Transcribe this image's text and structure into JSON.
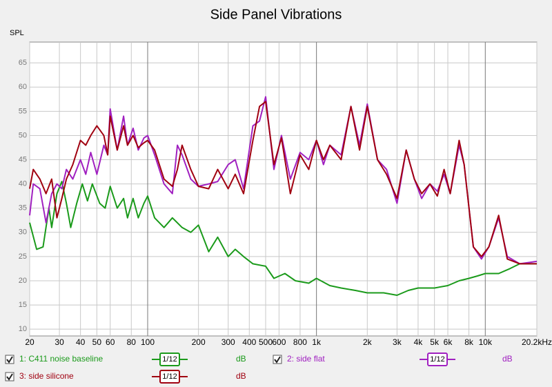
{
  "chart_data": {
    "type": "line",
    "title": "Side Panel Vibrations",
    "ylabel": "SPL",
    "xscale": "log",
    "grid": true,
    "xlim": [
      20,
      20200
    ],
    "ylim": [
      8.6,
      69.3
    ],
    "yticks": [
      10,
      15,
      20,
      25,
      30,
      35,
      40,
      45,
      50,
      55,
      60,
      65
    ],
    "xticks": [
      20,
      30,
      40,
      50,
      60,
      80,
      100,
      200,
      300,
      400,
      500,
      600,
      800,
      {
        "value": 1000,
        "label": "1k"
      },
      {
        "value": 2000,
        "label": "2k"
      },
      {
        "value": 3000,
        "label": "3k"
      },
      {
        "value": 4000,
        "label": "4k"
      },
      {
        "value": 5000,
        "label": "5k"
      },
      {
        "value": 6000,
        "label": "6k"
      },
      {
        "value": 8000,
        "label": "8k"
      },
      {
        "value": 10000,
        "label": "10k"
      },
      {
        "value": 20200,
        "label": "20.2kHz"
      }
    ],
    "series": [
      {
        "name": "1: C411 noise baseline",
        "color": "#1a9a1a",
        "smoothing": "1/12",
        "unit": "dB",
        "x": [
          20,
          22,
          24,
          26,
          27,
          29,
          31,
          33,
          35,
          38,
          41,
          44,
          47,
          52,
          56,
          60,
          66,
          72,
          76,
          82,
          88,
          95,
          100,
          110,
          125,
          140,
          160,
          180,
          200,
          230,
          260,
          300,
          330,
          370,
          420,
          500,
          560,
          650,
          750,
          900,
          1000,
          1200,
          1400,
          1700,
          2000,
          2500,
          3000,
          3500,
          4000,
          5000,
          6000,
          7000,
          8000,
          9000,
          10000,
          12000,
          14000,
          16000,
          20200
        ],
        "values": [
          32,
          26.5,
          27,
          35,
          31,
          38,
          40.5,
          36,
          31,
          36,
          40,
          36.5,
          40,
          36,
          35,
          39.5,
          35,
          37,
          33,
          37,
          33,
          36,
          37.5,
          33,
          31,
          33,
          31,
          30,
          31.5,
          26,
          29,
          25,
          26.5,
          25,
          23.5,
          23,
          20.5,
          21.5,
          20,
          19.5,
          20.5,
          19,
          18.5,
          18,
          17.5,
          17.5,
          17,
          18,
          18.5,
          18.5,
          19,
          20,
          20.5,
          21,
          21.5,
          21.5,
          22.5,
          23.5,
          23.5
        ]
      },
      {
        "name": "2: side flat",
        "color": "#a020c0",
        "smoothing": "1/12",
        "unit": "dB",
        "x": [
          20,
          21,
          23,
          25,
          27,
          29,
          31,
          33,
          36,
          40,
          43,
          46,
          50,
          55,
          58,
          60,
          66,
          72,
          76,
          82,
          88,
          95,
          100,
          110,
          125,
          140,
          150,
          160,
          180,
          200,
          230,
          260,
          300,
          330,
          370,
          420,
          460,
          500,
          560,
          620,
          700,
          800,
          900,
          1000,
          1100,
          1200,
          1400,
          1600,
          1800,
          2000,
          2300,
          2600,
          3000,
          3400,
          3800,
          4200,
          4700,
          5200,
          5700,
          6200,
          7000,
          7500,
          8500,
          9500,
          10500,
          12000,
          13500,
          16000,
          20200
        ],
        "values": [
          33.5,
          40,
          39,
          32,
          38,
          40,
          39,
          43,
          41,
          45,
          42,
          46.5,
          42,
          48,
          46,
          55.5,
          47,
          54,
          48,
          51.5,
          47,
          49.5,
          50,
          46,
          40,
          38,
          48,
          46,
          41,
          39.5,
          40,
          40.5,
          44,
          45,
          39,
          52,
          53,
          58,
          43,
          50,
          41,
          46.5,
          45,
          49,
          44,
          48,
          46,
          56,
          48,
          56.5,
          45,
          43,
          36,
          47,
          41,
          37,
          40,
          38.5,
          42,
          38,
          48,
          44,
          27,
          24.5,
          27,
          33,
          25,
          23.5,
          24
        ]
      },
      {
        "name": "3: side silicone",
        "color": "#a00010",
        "smoothing": "1/12",
        "unit": "dB",
        "x": [
          20,
          21,
          23,
          25,
          27,
          29,
          31,
          33,
          36,
          40,
          43,
          46,
          50,
          55,
          58,
          60,
          66,
          72,
          76,
          82,
          88,
          95,
          100,
          110,
          125,
          140,
          150,
          160,
          180,
          200,
          230,
          260,
          300,
          330,
          370,
          420,
          460,
          500,
          560,
          620,
          700,
          800,
          900,
          1000,
          1100,
          1200,
          1400,
          1600,
          1800,
          2000,
          2300,
          2600,
          3000,
          3400,
          3800,
          4200,
          4700,
          5200,
          5700,
          6200,
          7000,
          7500,
          8500,
          9500,
          10500,
          12000,
          13500,
          16000,
          20200
        ],
        "values": [
          39,
          43,
          41,
          38,
          41,
          33,
          37,
          41,
          44,
          49,
          48,
          50,
          52,
          50,
          46,
          54,
          47,
          52,
          48,
          50,
          47.5,
          48.5,
          49,
          47,
          41,
          39.5,
          43,
          48,
          43,
          39.5,
          39,
          43,
          39,
          42,
          38,
          49,
          56,
          57,
          44,
          49.5,
          38,
          46,
          43,
          49,
          45,
          48,
          45,
          56,
          47,
          56,
          45,
          42,
          37,
          47,
          41,
          38,
          40,
          37.5,
          43,
          38,
          49,
          44,
          27,
          25,
          27,
          33.5,
          24.5,
          23.5,
          23.5
        ]
      }
    ]
  }
}
